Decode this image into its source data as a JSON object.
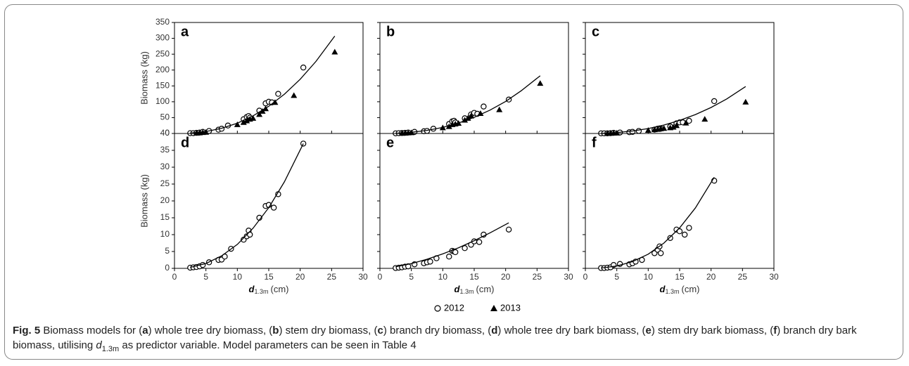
{
  "chart_data": [
    {
      "type": "scatter",
      "panel": "a",
      "ylabel": "Biomass (kg)",
      "show_yticklabels": true,
      "show_xticklabels": false,
      "xlim": [
        0,
        30
      ],
      "xticks": [
        0,
        5,
        10,
        15,
        20,
        25,
        30
      ],
      "ylim": [
        0,
        350
      ],
      "yticks": [
        0,
        50,
        100,
        150,
        200,
        250,
        300,
        350
      ],
      "series": [
        {
          "marker": "circle",
          "color": "#000000",
          "x": [
            2.5,
            3,
            3.5,
            4,
            4.5,
            5.5,
            7,
            7.5,
            8.5,
            11,
            11.5,
            11.8,
            12,
            13.5,
            14.5,
            15,
            15.5,
            16.5,
            20.5
          ],
          "values": [
            1,
            1,
            2,
            3,
            5,
            8,
            12,
            15,
            25,
            45,
            52,
            55,
            50,
            72,
            95,
            100,
            98,
            125,
            208
          ]
        },
        {
          "marker": "triangle",
          "color": "#000000",
          "x": [
            3.5,
            4,
            4.5,
            5,
            10,
            11,
            11.5,
            12,
            12.5,
            13.5,
            14,
            14.5,
            16,
            19,
            25.5
          ],
          "values": [
            1,
            2,
            3,
            4,
            28,
            35,
            40,
            45,
            48,
            60,
            70,
            78,
            98,
            120,
            257
          ]
        },
        {
          "marker": "line",
          "color": "#000000",
          "x": [
            2.5,
            5,
            7.5,
            10,
            12.5,
            15,
            17.5,
            20,
            22.5,
            25.5
          ],
          "values": [
            1.2,
            6.2,
            16.3,
            32.4,
            55.5,
            85.9,
            124,
            171,
            227,
            307
          ]
        }
      ]
    },
    {
      "type": "scatter",
      "panel": "b",
      "show_yticklabels": false,
      "show_xticklabels": false,
      "xlim": [
        0,
        30
      ],
      "xticks": [
        0,
        5,
        10,
        15,
        20,
        25,
        30
      ],
      "ylim": [
        0,
        350
      ],
      "yticks": [
        0,
        50,
        100,
        150,
        200,
        250,
        300,
        350
      ],
      "series": [
        {
          "marker": "circle",
          "color": "#000000",
          "x": [
            2.5,
            3,
            3.5,
            4,
            4.5,
            5.5,
            7,
            7.5,
            8.5,
            11,
            11.5,
            11.8,
            12,
            13.5,
            14.5,
            15,
            15.5,
            16.5,
            20.5
          ],
          "values": [
            0.5,
            1,
            1.5,
            2,
            3,
            5,
            7,
            8,
            15,
            30,
            38,
            40,
            35,
            48,
            60,
            65,
            62,
            85,
            107
          ]
        },
        {
          "marker": "triangle",
          "color": "#000000",
          "x": [
            3.5,
            4,
            4.5,
            5,
            10,
            11,
            11.5,
            12,
            12.5,
            13.5,
            14,
            14.5,
            16,
            19,
            25.5
          ],
          "values": [
            0.5,
            1,
            2,
            2.5,
            18,
            22,
            28,
            30,
            32,
            42,
            48,
            55,
            63,
            75,
            158
          ]
        },
        {
          "marker": "line",
          "color": "#000000",
          "x": [
            2.5,
            5,
            7.5,
            10,
            12.5,
            15,
            17.5,
            20,
            22.5,
            25.5
          ],
          "values": [
            0.7,
            3.7,
            9.7,
            19.2,
            32.9,
            50.9,
            73.5,
            101,
            135,
            182
          ]
        }
      ]
    },
    {
      "type": "scatter",
      "panel": "c",
      "show_yticklabels": false,
      "show_xticklabels": false,
      "xlim": [
        0,
        30
      ],
      "xticks": [
        0,
        5,
        10,
        15,
        20,
        25,
        30
      ],
      "ylim": [
        0,
        350
      ],
      "yticks": [
        0,
        50,
        100,
        150,
        200,
        250,
        300,
        350
      ],
      "series": [
        {
          "marker": "circle",
          "color": "#000000",
          "x": [
            2.5,
            3,
            3.5,
            4,
            4.5,
            5.5,
            7,
            7.5,
            8.5,
            11,
            11.5,
            11.8,
            12,
            13.5,
            14.5,
            15,
            15.5,
            16.5,
            20.5
          ],
          "values": [
            0.5,
            0.5,
            0.5,
            1,
            2,
            3,
            4,
            5,
            8,
            12,
            15,
            16,
            15,
            22,
            32,
            35,
            35,
            40,
            102
          ]
        },
        {
          "marker": "triangle",
          "color": "#000000",
          "x": [
            3.5,
            4,
            4.5,
            5,
            10,
            11,
            11.5,
            12,
            12.5,
            13.5,
            14,
            14.5,
            16,
            19,
            25.5
          ],
          "values": [
            0.3,
            0.5,
            1,
            1.5,
            10,
            12,
            13,
            15,
            16,
            18,
            20,
            25,
            33,
            45,
            99
          ]
        },
        {
          "marker": "line",
          "color": "#000000",
          "x": [
            2.5,
            5,
            7.5,
            10,
            12.5,
            15,
            17.5,
            20,
            22.5,
            25.5
          ],
          "values": [
            0.6,
            3.0,
            7.8,
            15.6,
            26.6,
            41.2,
            59.5,
            82,
            109,
            148
          ]
        }
      ]
    },
    {
      "type": "scatter",
      "panel": "d",
      "ylabel": "Biomass (kg)",
      "show_yticklabels": true,
      "show_xticklabels": true,
      "xlabel": {
        "symbol": "d",
        "subscript": "1.3m",
        "unit": "(cm)"
      },
      "xlim": [
        0,
        30
      ],
      "xticks": [
        0,
        5,
        10,
        15,
        20,
        25,
        30
      ],
      "ylim": [
        0,
        40
      ],
      "yticks": [
        0,
        5,
        10,
        15,
        20,
        25,
        30,
        35,
        40
      ],
      "series": [
        {
          "marker": "circle",
          "color": "#000000",
          "x": [
            2.5,
            3,
            3.5,
            4,
            4.5,
            5.5,
            7,
            7.5,
            8,
            9,
            11,
            11.5,
            11.8,
            12,
            13.5,
            14.5,
            15,
            15.8,
            16.5,
            20.5
          ],
          "values": [
            0.2,
            0.3,
            0.4,
            0.6,
            1,
            1.8,
            2.5,
            2.6,
            3.5,
            5.8,
            8.5,
            9.5,
            11.2,
            10,
            15,
            18.5,
            18.8,
            18,
            22,
            37
          ]
        },
        {
          "marker": "line",
          "color": "#000000",
          "x": [
            2.5,
            5,
            7.5,
            10,
            12.5,
            15,
            17.5,
            20.5
          ],
          "values": [
            0.29,
            1.44,
            3.7,
            7.1,
            11.9,
            18.0,
            25.7,
            37
          ]
        }
      ]
    },
    {
      "type": "scatter",
      "panel": "e",
      "show_yticklabels": false,
      "show_xticklabels": true,
      "xlabel": {
        "symbol": "d",
        "subscript": "1.3m",
        "unit": "(cm)"
      },
      "xlim": [
        0,
        30
      ],
      "xticks": [
        0,
        5,
        10,
        15,
        20,
        25,
        30
      ],
      "ylim": [
        0,
        40
      ],
      "yticks": [
        0,
        5,
        10,
        15,
        20,
        25,
        30,
        35,
        40
      ],
      "series": [
        {
          "marker": "circle",
          "color": "#000000",
          "x": [
            2.5,
            3,
            3.5,
            4,
            4.5,
            5.5,
            7,
            7.5,
            8,
            9,
            11,
            11.5,
            11.8,
            12,
            13.5,
            14.5,
            15,
            15.8,
            16.5,
            20.5
          ],
          "values": [
            0.1,
            0.2,
            0.3,
            0.5,
            0.6,
            1.2,
            1.5,
            1.8,
            2,
            3,
            3.5,
            5.2,
            5,
            4.8,
            6,
            7,
            8,
            7.8,
            10,
            11.5
          ]
        },
        {
          "marker": "line",
          "color": "#000000",
          "x": [
            2.5,
            5,
            7.5,
            10,
            12.5,
            15,
            17.5,
            20.5
          ],
          "values": [
            0.46,
            1.4,
            2.7,
            4.3,
            6.1,
            8.2,
            10.5,
            13.5
          ]
        }
      ]
    },
    {
      "type": "scatter",
      "panel": "f",
      "show_yticklabels": false,
      "show_xticklabels": true,
      "xlabel": {
        "symbol": "d",
        "subscript": "1.3m",
        "unit": "(cm)"
      },
      "xlim": [
        0,
        30
      ],
      "xticks": [
        0,
        5,
        10,
        15,
        20,
        25,
        30
      ],
      "ylim": [
        0,
        40
      ],
      "yticks": [
        0,
        5,
        10,
        15,
        20,
        25,
        30,
        35,
        40
      ],
      "series": [
        {
          "marker": "circle",
          "color": "#000000",
          "x": [
            2.5,
            3,
            3.5,
            4,
            4.5,
            5.5,
            7,
            7.5,
            8,
            9,
            11,
            11.5,
            11.8,
            12,
            13.5,
            14.5,
            15,
            15.8,
            16.5,
            20.5
          ],
          "values": [
            0.1,
            0.1,
            0.2,
            0.3,
            1,
            1.3,
            1.2,
            1.5,
            2,
            2.5,
            4.5,
            5.5,
            6.5,
            4.5,
            9,
            11.5,
            11,
            10,
            12,
            26
          ]
        },
        {
          "marker": "line",
          "color": "#000000",
          "x": [
            2.5,
            5,
            7.5,
            10,
            12.5,
            15,
            17.5,
            20.5
          ],
          "values": [
            0.11,
            0.69,
            2.0,
            4.2,
            7.5,
            12.0,
            17.9,
            27
          ]
        }
      ]
    }
  ],
  "legend": [
    {
      "name": "2012",
      "marker": "circle"
    },
    {
      "name": "2013",
      "marker": "triangle"
    }
  ],
  "caption": {
    "label": "Fig. 5",
    "parts": [
      {
        "text": "Biomass models for ("
      },
      {
        "text": "a",
        "style": "bold"
      },
      {
        "text": ") whole tree dry biomass, ("
      },
      {
        "text": "b",
        "style": "bold"
      },
      {
        "text": ") stem dry biomass, ("
      },
      {
        "text": "c",
        "style": "bold"
      },
      {
        "text": ") branch dry biomass, ("
      },
      {
        "text": "d",
        "style": "bold"
      },
      {
        "text": ") whole tree dry bark biomass, ("
      },
      {
        "text": "e",
        "style": "bold"
      },
      {
        "text": ") stem dry bark biomass, ("
      },
      {
        "text": "f",
        "style": "bold"
      },
      {
        "text": ") branch dry bark biomass, utilising "
      },
      {
        "text": "d",
        "style": "italic"
      },
      {
        "text": "1.3m",
        "style": "sub"
      },
      {
        "text": " as predictor variable. Model parameters can be seen in Table 4"
      }
    ]
  }
}
